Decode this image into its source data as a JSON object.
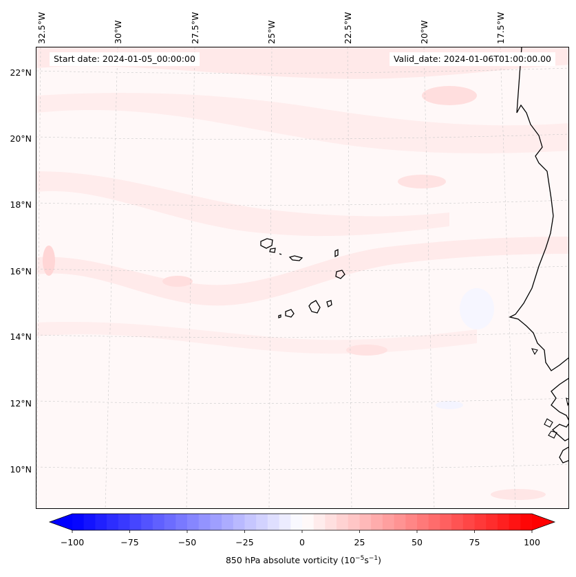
{
  "map": {
    "start_date_text": "Start date: 2024-01-05_00:00:00",
    "valid_date_text": "Valid_date: 2024-01-06T01:00:00.00",
    "lon_labels": [
      "32.5°W",
      "30°W",
      "27.5°W",
      "25°W",
      "22.5°W",
      "20°W",
      "17.5°W"
    ],
    "lat_labels": [
      "22°N",
      "20°N",
      "18°N",
      "16°N",
      "14°N",
      "12°N",
      "10°N"
    ],
    "lon_range": [
      -33,
      -16.4
    ],
    "lat_range": [
      8.8,
      22.8
    ],
    "gridlines": true,
    "features": [
      "coastline-west-africa",
      "cape-verde-islands"
    ]
  },
  "colorbar": {
    "label_text": "850 hPa absolute vorticity (10",
    "label_sup1": "−5",
    "label_unit": "s",
    "label_sup2": "−1",
    "label_close": ")",
    "range": [
      -100,
      100
    ],
    "extend": "both",
    "tick_labels": [
      "−100",
      "−75",
      "−50",
      "−25",
      "0",
      "25",
      "50",
      "75",
      "100"
    ],
    "colormap": "bwr",
    "colors": {
      "min": "#0000ff",
      "mid": "#ffffff",
      "max": "#ff0000"
    }
  }
}
